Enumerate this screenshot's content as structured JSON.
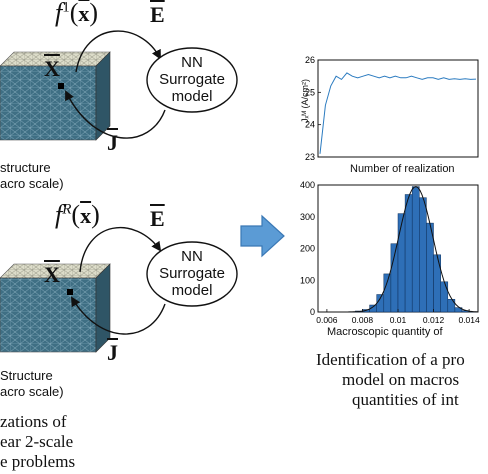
{
  "top_row": {
    "func_label_base": "f",
    "func_label_sup": "1",
    "func_label_arg": "(x)",
    "e_label": "E",
    "x_label": "X",
    "j_label": "J",
    "nn_line1": "NN",
    "nn_line2": "Surrogate",
    "nn_line3": "model",
    "structure_line1": "structure",
    "structure_line2": "acro scale)"
  },
  "bottom_row": {
    "func_label_base": "f",
    "func_label_sup": "R",
    "func_label_arg": "(x)",
    "e_label": "E",
    "x_label": "X",
    "j_label": "J",
    "nn_line1": "NN",
    "nn_line2": "Surrogate",
    "nn_line3": "model",
    "structure_line1": "Structure",
    "structure_line2": "acro scale)"
  },
  "left_caption": {
    "line1": "zations of",
    "line2": "ear 2-scale",
    "line3": "e problems"
  },
  "right_caption": {
    "line1": "Identification of a pro",
    "line2": "model on macros",
    "line3": "quantities of int"
  },
  "colors": {
    "arrow_fill": "#5b9bd5",
    "arrow_stroke": "#3a78b5",
    "hist_bar": "#2e6fb7",
    "line_series": "#2b7bc0",
    "mesh": "#d9d9c8"
  },
  "chart_data": [
    {
      "type": "line",
      "xlabel": "Number of realization",
      "ylabel": "Jₓᴹ (A/cm²)",
      "ylim": [
        23,
        26
      ],
      "yticks": [
        "23",
        "24",
        "25",
        "26"
      ],
      "grid": false,
      "series": [
        {
          "values": [
            23.1,
            24.6,
            25.2,
            25.5,
            25.4,
            25.6,
            25.5,
            25.45,
            25.5,
            25.55,
            25.5,
            25.45,
            25.5,
            25.45,
            25.5,
            25.45,
            25.45,
            25.5,
            25.45,
            25.4,
            25.45,
            25.45,
            25.4,
            25.45,
            25.4,
            25.42,
            25.4,
            25.42,
            25.4,
            25.41
          ]
        }
      ]
    },
    {
      "type": "bar",
      "xlabel": "Macroscopic quantity of",
      "ylim": [
        0,
        400
      ],
      "yticks": [
        "0",
        "100",
        "200",
        "300",
        "400"
      ],
      "xticks": [
        "0.006",
        "0.008",
        "0.01",
        "0.012",
        "0.014"
      ],
      "xlim": [
        0.0055,
        0.0145
      ],
      "grid": false,
      "bin_centers": [
        0.0062,
        0.0066,
        0.007,
        0.0074,
        0.0078,
        0.0082,
        0.0086,
        0.009,
        0.0094,
        0.0098,
        0.0102,
        0.0106,
        0.011,
        0.0114,
        0.0118,
        0.0122,
        0.0126,
        0.013,
        0.0134,
        0.0138,
        0.0142
      ],
      "values": [
        0,
        0,
        0,
        1,
        3,
        8,
        22,
        55,
        120,
        215,
        310,
        370,
        395,
        360,
        280,
        180,
        95,
        40,
        14,
        4,
        1
      ]
    }
  ]
}
